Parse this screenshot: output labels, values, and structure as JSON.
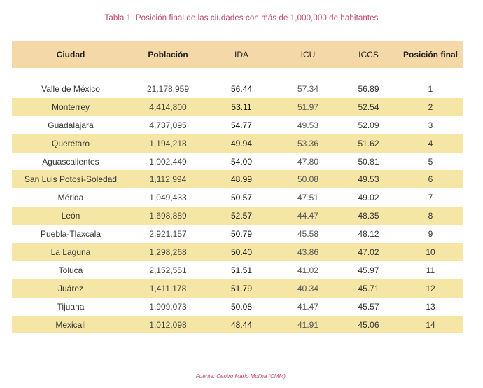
{
  "title": "Tabla 1. Posición final de las ciudades con más de 1,000,000 de habitantes",
  "columns": [
    "Ciudad",
    "Población",
    "IDA",
    "ICU",
    "ICCS",
    "Posición final"
  ],
  "rows": [
    {
      "ciudad": "Valle de México",
      "poblacion": "21,178,959",
      "ida": "56.44",
      "icu": "57.34",
      "iccs": "56.89",
      "pos": "1"
    },
    {
      "ciudad": "Monterrey",
      "poblacion": "4,414,800",
      "ida": "53.11",
      "icu": "51.97",
      "iccs": "52.54",
      "pos": "2"
    },
    {
      "ciudad": "Guadalajara",
      "poblacion": "4,737,095",
      "ida": "54.77",
      "icu": "49.53",
      "iccs": "52.09",
      "pos": "3"
    },
    {
      "ciudad": "Querétaro",
      "poblacion": "1,194,218",
      "ida": "49.94",
      "icu": "53.36",
      "iccs": "51.62",
      "pos": "4"
    },
    {
      "ciudad": "Aguascalientes",
      "poblacion": "1,002,449",
      "ida": "54.00",
      "icu": "47.80",
      "iccs": "50.81",
      "pos": "5"
    },
    {
      "ciudad": "San Luis Potosí-Soledad",
      "poblacion": "1,112,994",
      "ida": "48.99",
      "icu": "50.08",
      "iccs": "49.53",
      "pos": "6"
    },
    {
      "ciudad": "Mérida",
      "poblacion": "1,049,433",
      "ida": "50.57",
      "icu": "47.51",
      "iccs": "49.02",
      "pos": "7"
    },
    {
      "ciudad": "León",
      "poblacion": "1,698,889",
      "ida": "52.57",
      "icu": "44.47",
      "iccs": "48.35",
      "pos": "8"
    },
    {
      "ciudad": "Puebla-Tlaxcala",
      "poblacion": "2,921,157",
      "ida": "50.79",
      "icu": "45.58",
      "iccs": "48.12",
      "pos": "9"
    },
    {
      "ciudad": "La Laguna",
      "poblacion": "1,298,268",
      "ida": "50.40",
      "icu": "43.86",
      "iccs": "47.02",
      "pos": "10"
    },
    {
      "ciudad": "Toluca",
      "poblacion": "2,152,551",
      "ida": "51.51",
      "icu": "41.02",
      "iccs": "45.97",
      "pos": "11"
    },
    {
      "ciudad": "Juárez",
      "poblacion": "1,411,178",
      "ida": "51.79",
      "icu": "40.34",
      "iccs": "45.71",
      "pos": "12"
    },
    {
      "ciudad": "Tijuana",
      "poblacion": "1,909,073",
      "ida": "50.08",
      "icu": "41.47",
      "iccs": "45.57",
      "pos": "13"
    },
    {
      "ciudad": "Mexicali",
      "poblacion": "1,012,098",
      "ida": "48.44",
      "icu": "41.91",
      "iccs": "45.06",
      "pos": "14"
    }
  ],
  "source": "Fuente: Centro Mario Molina (CMM).",
  "colors": {
    "title": "#c0446a",
    "header_bg": "#f4d8a8",
    "alt_row_bg": "#f6e6a6"
  }
}
